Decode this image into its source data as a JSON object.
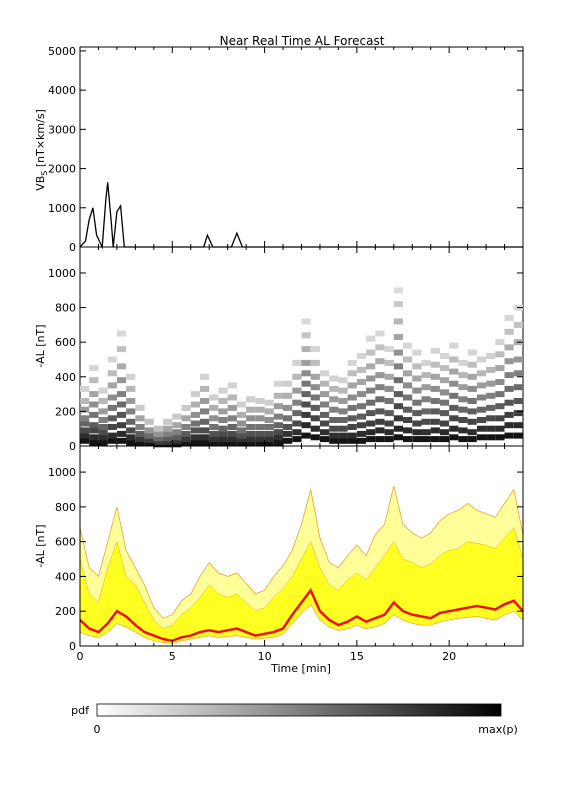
{
  "figure_title": "Near Real Time AL Forecast",
  "colorbar": {
    "label": "pdf",
    "min_label": "0",
    "max_label": "max(p)"
  },
  "colors": {
    "line": "#000000",
    "median_line": "#ee1111",
    "band_inner": "#ffff22",
    "band_outer": "#ffff99",
    "band_edge": "#f0a030"
  },
  "chart_data": [
    {
      "type": "line",
      "title": "Near Real Time AL Forecast",
      "ylabel_main": "VB",
      "ylabel_sub": "S",
      "ylabel_units": " [nT×km/s]",
      "xlim": [
        0,
        24
      ],
      "ylim": [
        0,
        5100
      ],
      "yticks": [
        0,
        1000,
        2000,
        3000,
        4000,
        5000
      ],
      "x_minor_step": 1,
      "series": [
        {
          "x": [
            0,
            0.3,
            0.5,
            0.7,
            0.9,
            1.2,
            1.4,
            1.5,
            1.7,
            1.8,
            2.0,
            2.2,
            2.4,
            2.6,
            2.8,
            3.0,
            3.2,
            3.5,
            4.0,
            4.5,
            4.8,
            5.0,
            5.3,
            5.5,
            5.7,
            6.0,
            6.3,
            6.5,
            6.7,
            6.9,
            7.2,
            7.4,
            7.6,
            7.8,
            8.0,
            8.2,
            8.5,
            8.8,
            9.0,
            9.2,
            9.5,
            9.8,
            10.0,
            10.2,
            10.4,
            10.6,
            10.8,
            11.0,
            11.3,
            11.5,
            11.7,
            11.9,
            12.1,
            12.3,
            12.5,
            12.7,
            12.9,
            13.1,
            13.3,
            13.5,
            13.7,
            14.0,
            14.3,
            14.5,
            14.7,
            14.9,
            15.1,
            15.3,
            15.5,
            15.7,
            15.9,
            16.1,
            16.3,
            16.5,
            16.7,
            16.9,
            17.1,
            17.3,
            17.5,
            17.7,
            17.9,
            18.1,
            18.3,
            18.5,
            18.7,
            18.9,
            19.1,
            19.3,
            19.5,
            19.7,
            19.9,
            20.1,
            20.3,
            20.5,
            20.7,
            20.9,
            21.1,
            21.3,
            21.5,
            21.7,
            21.9,
            22.1,
            22.3,
            22.5,
            22.7,
            22.9,
            23.1,
            23.3,
            23.5,
            23.7,
            23.9,
            24.0
          ],
          "y": [
            0,
            150,
            700,
            1000,
            300,
            0,
            1200,
            1650,
            600,
            0,
            900,
            1050,
            0,
            0,
            0,
            0,
            0,
            0,
            0,
            0,
            0,
            0,
            0,
            0,
            0,
            0,
            0,
            0,
            0,
            300,
            0,
            0,
            0,
            0,
            0,
            0,
            350,
            0,
            0,
            0,
            0,
            0,
            0,
            0,
            0,
            0,
            0,
            0,
            0,
            0,
            0,
            0,
            0,
            0,
            0,
            0,
            0,
            0,
            0,
            0,
            0,
            0,
            0,
            0,
            0,
            0,
            0,
            0,
            0,
            0,
            0,
            0,
            0,
            0,
            0,
            0,
            0,
            0,
            0,
            0,
            0,
            0,
            0,
            0,
            0,
            0,
            0,
            0,
            0,
            0,
            0,
            0,
            0,
            0,
            0,
            0,
            0,
            0,
            0,
            0,
            0,
            0,
            0,
            0,
            0,
            0,
            0,
            0,
            0,
            0,
            0,
            0
          ]
        }
      ]
    },
    {
      "type": "heatmap",
      "ylabel": "-AL [nT]",
      "xlim": [
        0,
        24
      ],
      "ylim": [
        0,
        1150
      ],
      "yticks": [
        0,
        200,
        400,
        600,
        800,
        1000
      ],
      "columns": [
        {
          "x": 0.25,
          "y": [
            30,
            60,
            90,
            130,
            160,
            210,
            260,
            330
          ]
        },
        {
          "x": 0.75,
          "y": [
            20,
            50,
            90,
            120,
            180,
            240,
            300,
            380,
            450
          ]
        },
        {
          "x": 1.25,
          "y": [
            20,
            50,
            80,
            110,
            150,
            200,
            260,
            320
          ]
        },
        {
          "x": 1.75,
          "y": [
            30,
            60,
            110,
            160,
            220,
            280,
            350,
            420,
            500
          ]
        },
        {
          "x": 2.25,
          "y": [
            30,
            70,
            120,
            180,
            240,
            300,
            380,
            460,
            560,
            650
          ]
        },
        {
          "x": 2.75,
          "y": [
            20,
            50,
            90,
            140,
            200,
            260,
            330,
            400
          ]
        },
        {
          "x": 3.25,
          "y": [
            20,
            40,
            70,
            110,
            160,
            220
          ]
        },
        {
          "x": 3.75,
          "y": [
            15,
            35,
            60,
            90,
            140
          ]
        },
        {
          "x": 4.25,
          "y": [
            10,
            25,
            45,
            70,
            100
          ]
        },
        {
          "x": 4.75,
          "y": [
            10,
            25,
            45,
            70,
            100,
            140
          ]
        },
        {
          "x": 5.25,
          "y": [
            10,
            30,
            50,
            80,
            120,
            170
          ]
        },
        {
          "x": 5.75,
          "y": [
            20,
            40,
            70,
            110,
            160,
            220
          ]
        },
        {
          "x": 6.25,
          "y": [
            20,
            50,
            90,
            130,
            180,
            240,
            300
          ]
        },
        {
          "x": 6.75,
          "y": [
            20,
            50,
            90,
            140,
            200,
            260,
            330,
            400
          ]
        },
        {
          "x": 7.25,
          "y": [
            20,
            40,
            70,
            110,
            160,
            220,
            280
          ]
        },
        {
          "x": 7.75,
          "y": [
            20,
            40,
            70,
            100,
            150,
            200,
            260,
            320
          ]
        },
        {
          "x": 8.25,
          "y": [
            20,
            40,
            70,
            110,
            160,
            220,
            280,
            350
          ]
        },
        {
          "x": 8.75,
          "y": [
            20,
            40,
            60,
            90,
            130,
            180,
            240
          ]
        },
        {
          "x": 9.25,
          "y": [
            20,
            40,
            70,
            110,
            160,
            210,
            270
          ]
        },
        {
          "x": 9.75,
          "y": [
            20,
            40,
            70,
            110,
            160,
            210,
            260
          ]
        },
        {
          "x": 10.25,
          "y": [
            20,
            40,
            70,
            110,
            150,
            200,
            250
          ]
        },
        {
          "x": 10.75,
          "y": [
            20,
            50,
            80,
            120,
            170,
            230,
            290,
            360
          ]
        },
        {
          "x": 11.25,
          "y": [
            30,
            70,
            110,
            160,
            220,
            290,
            360
          ]
        },
        {
          "x": 11.75,
          "y": [
            40,
            80,
            130,
            190,
            250,
            320,
            400,
            480
          ]
        },
        {
          "x": 12.25,
          "y": [
            60,
            120,
            180,
            240,
            300,
            360,
            420,
            480,
            560,
            640,
            720
          ]
        },
        {
          "x": 12.75,
          "y": [
            50,
            100,
            160,
            220,
            280,
            340,
            400,
            480,
            560
          ]
        },
        {
          "x": 13.25,
          "y": [
            40,
            80,
            130,
            180,
            240,
            300,
            360,
            420
          ]
        },
        {
          "x": 13.75,
          "y": [
            30,
            60,
            100,
            150,
            210,
            270,
            330,
            390
          ]
        },
        {
          "x": 14.25,
          "y": [
            30,
            60,
            100,
            150,
            200,
            260,
            320,
            380
          ]
        },
        {
          "x": 14.75,
          "y": [
            30,
            60,
            110,
            160,
            220,
            280,
            350,
            420,
            480
          ]
        },
        {
          "x": 15.25,
          "y": [
            30,
            70,
            120,
            170,
            230,
            300,
            370,
            440,
            520
          ]
        },
        {
          "x": 15.75,
          "y": [
            40,
            80,
            130,
            190,
            250,
            320,
            390,
            460,
            540,
            620
          ]
        },
        {
          "x": 16.25,
          "y": [
            40,
            90,
            140,
            200,
            270,
            340,
            410,
            490,
            570,
            650
          ]
        },
        {
          "x": 16.75,
          "y": [
            40,
            80,
            130,
            190,
            260,
            330,
            400,
            480,
            560
          ]
        },
        {
          "x": 17.25,
          "y": [
            50,
            100,
            160,
            230,
            300,
            380,
            460,
            540,
            630,
            720,
            820,
            900
          ]
        },
        {
          "x": 17.75,
          "y": [
            40,
            90,
            150,
            210,
            280,
            350,
            420,
            500,
            580
          ]
        },
        {
          "x": 18.25,
          "y": [
            40,
            80,
            130,
            190,
            250,
            320,
            390,
            460,
            540
          ]
        },
        {
          "x": 18.75,
          "y": [
            40,
            80,
            140,
            200,
            270,
            340,
            410,
            480
          ]
        },
        {
          "x": 19.25,
          "y": [
            40,
            90,
            140,
            200,
            260,
            330,
            400,
            470,
            550
          ]
        },
        {
          "x": 19.75,
          "y": [
            40,
            80,
            130,
            190,
            250,
            310,
            380,
            450,
            520
          ]
        },
        {
          "x": 20.25,
          "y": [
            50,
            100,
            160,
            220,
            290,
            360,
            430,
            500,
            580
          ]
        },
        {
          "x": 20.75,
          "y": [
            40,
            90,
            150,
            210,
            270,
            340,
            410,
            480
          ]
        },
        {
          "x": 21.25,
          "y": [
            40,
            80,
            140,
            200,
            260,
            330,
            400,
            470,
            540
          ]
        },
        {
          "x": 21.75,
          "y": [
            50,
            100,
            150,
            210,
            280,
            350,
            420,
            500
          ]
        },
        {
          "x": 22.25,
          "y": [
            50,
            100,
            160,
            220,
            290,
            360,
            440,
            520
          ]
        },
        {
          "x": 22.75,
          "y": [
            50,
            100,
            160,
            230,
            300,
            370,
            450,
            530,
            600
          ]
        },
        {
          "x": 23.25,
          "y": [
            60,
            120,
            180,
            250,
            330,
            410,
            490,
            570,
            660,
            740
          ]
        },
        {
          "x": 23.75,
          "y": [
            60,
            120,
            190,
            260,
            340,
            420,
            500,
            600,
            700,
            800
          ]
        }
      ]
    },
    {
      "type": "area",
      "ylabel": "-AL [nT]",
      "xlabel": "Time [min]",
      "xlim": [
        0,
        24
      ],
      "ylim": [
        0,
        1150
      ],
      "yticks": [
        0,
        200,
        400,
        600,
        800,
        1000
      ],
      "xticks": [
        0,
        5,
        10,
        15,
        20
      ],
      "x": [
        0,
        0.5,
        1,
        1.5,
        2,
        2.5,
        3,
        3.5,
        4,
        4.5,
        5,
        5.5,
        6,
        6.5,
        7,
        7.5,
        8,
        8.5,
        9,
        9.5,
        10,
        10.5,
        11,
        11.5,
        12,
        12.5,
        13,
        13.5,
        14,
        14.5,
        15,
        15.5,
        16,
        16.5,
        17,
        17.5,
        18,
        18.5,
        19,
        19.5,
        20,
        20.5,
        21,
        21.5,
        22,
        22.5,
        23,
        23.5,
        24
      ],
      "median": [
        150,
        100,
        80,
        130,
        200,
        170,
        120,
        80,
        60,
        40,
        30,
        50,
        60,
        80,
        90,
        80,
        90,
        100,
        80,
        60,
        70,
        80,
        100,
        180,
        250,
        320,
        200,
        150,
        120,
        140,
        170,
        140,
        160,
        180,
        250,
        200,
        180,
        170,
        160,
        190,
        200,
        210,
        220,
        230,
        220,
        210,
        240,
        260,
        200
      ],
      "inner_upper": [
        500,
        300,
        250,
        450,
        600,
        400,
        350,
        250,
        150,
        100,
        120,
        180,
        220,
        280,
        350,
        300,
        280,
        300,
        250,
        200,
        220,
        280,
        330,
        400,
        500,
        600,
        450,
        350,
        320,
        380,
        420,
        380,
        450,
        520,
        600,
        500,
        480,
        450,
        470,
        520,
        550,
        560,
        600,
        590,
        580,
        560,
        620,
        680,
        500
      ],
      "outer_upper": [
        680,
        450,
        400,
        600,
        800,
        550,
        450,
        350,
        220,
        160,
        180,
        260,
        300,
        400,
        480,
        420,
        400,
        420,
        360,
        300,
        320,
        400,
        460,
        550,
        700,
        900,
        620,
        480,
        450,
        520,
        580,
        520,
        640,
        700,
        920,
        700,
        650,
        620,
        650,
        720,
        760,
        780,
        820,
        780,
        760,
        740,
        820,
        900,
        640
      ],
      "lower": [
        80,
        60,
        50,
        80,
        130,
        110,
        80,
        50,
        30,
        20,
        15,
        30,
        40,
        50,
        60,
        50,
        55,
        60,
        50,
        40,
        45,
        50,
        70,
        130,
        190,
        240,
        150,
        110,
        90,
        100,
        120,
        100,
        110,
        130,
        180,
        150,
        130,
        120,
        120,
        140,
        150,
        160,
        165,
        170,
        160,
        150,
        180,
        200,
        150
      ]
    }
  ]
}
